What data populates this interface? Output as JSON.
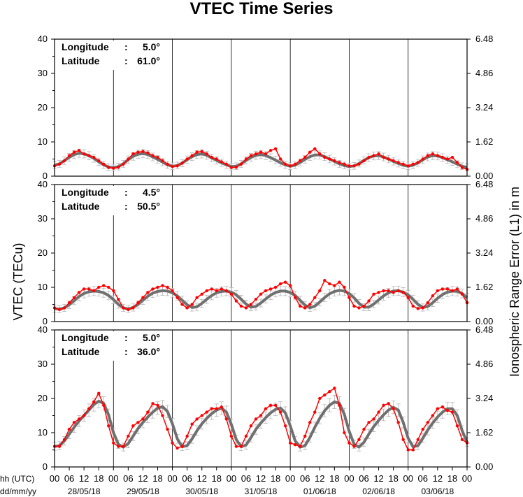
{
  "chart_data": {
    "type": "line",
    "title": "VTEC Time Series",
    "ylabel_left": "VTEC (TECu)",
    "ylabel_right": "Ionospheric Range Error (L1) in m",
    "x_time_label": "hh (UTC)",
    "x_date_label": "dd/mm/yy",
    "x_hour_ticks": [
      "00",
      "06",
      "12",
      "18"
    ],
    "dates": [
      "28/05/18",
      "29/05/18",
      "30/05/18",
      "31/05/18",
      "01/06/18",
      "02/06/18",
      "03/06/18"
    ],
    "last_hour_tick": "00",
    "ylim": [
      0,
      40
    ],
    "y_ticks": [
      0,
      10,
      20,
      30,
      40
    ],
    "y_right_ticks": [
      "0.00",
      "1.62",
      "3.24",
      "4.86",
      "6.48"
    ],
    "hours_per_point": 2,
    "series_colors": {
      "measured": "#ff0000",
      "model": "#707070",
      "errorbar": "#b4b4b4"
    },
    "panels": [
      {
        "longitude_label": "Longitude",
        "longitude_value": "5.0°",
        "latitude_label": "Latitude",
        "latitude_value": "61.0°",
        "measured": [
          3.0,
          3.5,
          4.5,
          6.0,
          7.0,
          7.5,
          6.5,
          6.0,
          5.5,
          4.5,
          3.5,
          2.5,
          2.3,
          2.6,
          3.5,
          5.0,
          6.5,
          7.0,
          7.2,
          6.8,
          6.0,
          5.5,
          4.5,
          3.5,
          2.8,
          3.0,
          3.8,
          5.0,
          6.0,
          7.0,
          7.2,
          6.5,
          5.5,
          5.0,
          4.2,
          3.5,
          2.5,
          2.6,
          3.5,
          5.0,
          6.0,
          6.5,
          7.0,
          6.5,
          7.5,
          8.0,
          5.0,
          3.5,
          3.0,
          3.5,
          4.5,
          5.5,
          7.0,
          8.0,
          6.5,
          5.5,
          5.0,
          4.5,
          4.0,
          3.5,
          3.0,
          3.0,
          3.5,
          4.5,
          5.5,
          6.0,
          6.5,
          5.5,
          5.0,
          4.5,
          4.0,
          3.5,
          3.0,
          3.5,
          4.0,
          5.0,
          6.0,
          6.5,
          6.0,
          5.5,
          5.0,
          5.5,
          4.0,
          2.5,
          2.0
        ],
        "model": [
          3.2,
          3.6,
          4.5,
          5.5,
          6.3,
          6.7,
          6.5,
          6.0,
          5.2,
          4.2,
          3.3,
          2.7,
          2.5,
          2.8,
          3.6,
          4.8,
          5.8,
          6.4,
          6.6,
          6.3,
          5.6,
          4.9,
          4.1,
          3.3,
          2.9,
          3.1,
          3.8,
          4.8,
          5.7,
          6.3,
          6.5,
          6.1,
          5.3,
          4.6,
          3.9,
          3.3,
          2.8,
          2.9,
          3.6,
          4.6,
          5.5,
          6.1,
          6.3,
          6.0,
          5.4,
          4.7,
          3.9,
          3.3,
          2.9,
          3.2,
          4.0,
          4.9,
          5.7,
          6.2,
          6.2,
          5.7,
          5.0,
          4.3,
          3.6,
          3.1,
          2.8,
          3.0,
          3.7,
          4.6,
          5.4,
          5.9,
          6.0,
          5.6,
          5.0,
          4.3,
          3.7,
          3.2,
          2.9,
          3.2,
          3.9,
          4.8,
          5.6,
          6.0,
          5.9,
          5.4,
          4.8,
          4.2,
          3.5,
          2.9,
          2.6
        ]
      },
      {
        "longitude_label": "Longitude",
        "longitude_value": "4.5°",
        "latitude_label": "Latitude",
        "latitude_value": "50.5°",
        "measured": [
          4.0,
          3.5,
          4.0,
          5.5,
          7.0,
          8.5,
          9.5,
          9.5,
          9.0,
          10.0,
          10.5,
          10.0,
          9.0,
          6.5,
          4.0,
          3.5,
          4.0,
          5.5,
          7.0,
          8.5,
          9.5,
          10.0,
          10.5,
          10.0,
          9.0,
          7.0,
          5.0,
          4.0,
          5.0,
          7.0,
          8.0,
          9.0,
          9.5,
          9.0,
          9.5,
          9.0,
          8.0,
          6.0,
          4.5,
          4.0,
          5.0,
          6.5,
          8.0,
          9.0,
          9.5,
          10.0,
          11.0,
          11.5,
          10.5,
          7.0,
          4.5,
          4.0,
          5.0,
          7.0,
          9.0,
          12.0,
          11.0,
          10.5,
          11.5,
          10.0,
          7.0,
          4.5,
          4.0,
          4.5,
          6.0,
          8.0,
          8.5,
          9.0,
          9.0,
          8.5,
          9.0,
          8.5,
          7.0,
          4.5,
          3.8,
          4.0,
          5.5,
          7.5,
          9.0,
          9.5,
          9.5,
          9.0,
          9.5,
          8.0,
          5.5
        ],
        "model": [
          3.8,
          3.6,
          4.0,
          4.9,
          6.1,
          7.3,
          8.2,
          8.7,
          8.9,
          8.8,
          8.4,
          7.6,
          6.4,
          5.0,
          4.0,
          3.7,
          4.1,
          5.0,
          6.2,
          7.4,
          8.3,
          8.8,
          9.0,
          8.9,
          8.4,
          7.5,
          6.2,
          4.9,
          4.1,
          4.3,
          5.3,
          6.5,
          7.6,
          8.4,
          8.8,
          8.9,
          8.6,
          7.8,
          6.5,
          5.1,
          4.2,
          4.4,
          5.4,
          6.6,
          7.7,
          8.5,
          8.9,
          8.9,
          8.5,
          7.6,
          6.2,
          4.8,
          4.0,
          4.5,
          5.7,
          7.0,
          8.1,
          8.8,
          9.1,
          8.9,
          8.2,
          6.9,
          5.3,
          4.2,
          4.2,
          5.1,
          6.3,
          7.5,
          8.4,
          8.9,
          9.0,
          8.6,
          7.8,
          6.5,
          5.0,
          4.1,
          4.4,
          5.5,
          6.8,
          7.9,
          8.6,
          8.9,
          8.8,
          8.2,
          6.9
        ]
      },
      {
        "longitude_label": "Longitude",
        "longitude_value": "5.0°",
        "latitude_label": "Latitude",
        "latitude_value": "36.0°",
        "measured": [
          6.0,
          6.0,
          8.0,
          11.0,
          13.0,
          14.0,
          15.0,
          17.0,
          19.0,
          21.5,
          18.0,
          12.0,
          7.0,
          6.0,
          6.0,
          9.0,
          12.0,
          13.0,
          14.0,
          16.0,
          18.5,
          18.0,
          15.0,
          11.0,
          7.0,
          5.5,
          6.0,
          9.0,
          12.5,
          14.0,
          15.0,
          16.0,
          17.0,
          17.0,
          17.5,
          14.0,
          9.0,
          6.0,
          6.0,
          9.0,
          12.0,
          14.0,
          15.0,
          17.0,
          18.0,
          18.0,
          16.0,
          12.0,
          7.0,
          6.5,
          6.0,
          9.0,
          13.0,
          16.0,
          20.0,
          21.0,
          22.0,
          23.0,
          18.0,
          10.0,
          7.0,
          6.0,
          8.0,
          11.0,
          13.0,
          14.0,
          16.0,
          18.0,
          18.5,
          17.0,
          13.0,
          8.0,
          5.0,
          5.0,
          8.0,
          11.0,
          13.0,
          15.0,
          17.0,
          17.5,
          16.5,
          16.0,
          12.0,
          8.0,
          7.0
        ],
        "model": [
          6.0,
          6.2,
          7.6,
          9.6,
          11.6,
          13.4,
          15.0,
          16.6,
          18.2,
          19.2,
          18.6,
          15.2,
          10.0,
          6.6,
          5.8,
          6.8,
          9.0,
          11.2,
          13.0,
          14.6,
          16.0,
          17.2,
          17.6,
          16.2,
          12.6,
          8.2,
          5.9,
          6.2,
          8.2,
          10.6,
          12.6,
          14.2,
          15.6,
          16.6,
          17.2,
          16.0,
          12.4,
          8.0,
          5.9,
          6.4,
          8.6,
          11.0,
          12.8,
          14.4,
          15.8,
          16.8,
          17.2,
          15.8,
          12.0,
          7.6,
          5.8,
          6.2,
          8.6,
          11.6,
          14.2,
          16.4,
          18.0,
          19.0,
          18.6,
          15.4,
          10.4,
          6.6,
          5.8,
          7.2,
          9.6,
          11.8,
          13.6,
          15.2,
          16.6,
          17.4,
          16.6,
          13.0,
          8.4,
          5.9,
          6.2,
          8.4,
          10.8,
          12.8,
          14.6,
          16.0,
          17.0,
          17.0,
          15.0,
          10.6,
          7.2
        ]
      }
    ]
  }
}
